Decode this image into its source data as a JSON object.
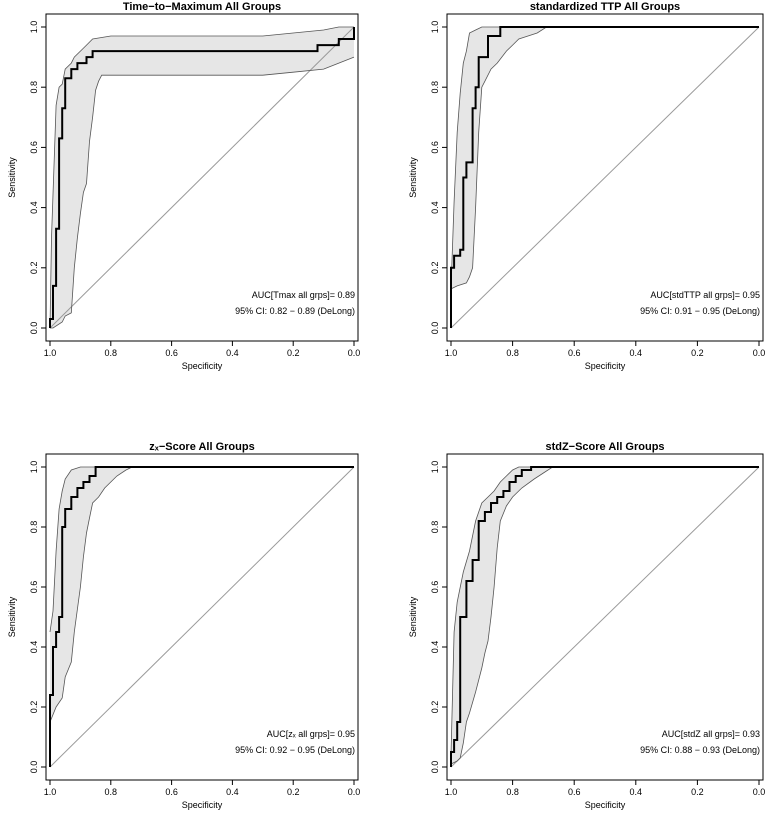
{
  "figure": {
    "background": "#ffffff",
    "band_color": "#e6e6e6"
  },
  "chart_data": [
    {
      "type": "line",
      "title": "Time−to−Maximum All Groups",
      "xlabel": "Specificity",
      "ylabel": "Sensitivity",
      "xlim": [
        1.0,
        0.0
      ],
      "ylim": [
        0.0,
        1.0
      ],
      "xticks": [
        "1.0",
        "0.8",
        "0.6",
        "0.4",
        "0.2",
        "0.0"
      ],
      "yticks": [
        "0.0",
        "0.2",
        "0.4",
        "0.6",
        "0.8",
        "1.0"
      ],
      "annotations": [
        "AUC[Tmax all grps]= 0.89",
        "95% CI: 0.82 − 0.89 (DeLong)"
      ],
      "series": [
        {
          "name": "ROC",
          "x": [
            1.0,
            1.0,
            0.99,
            0.99,
            0.98,
            0.98,
            0.97,
            0.97,
            0.96,
            0.96,
            0.95,
            0.95,
            0.93,
            0.93,
            0.91,
            0.91,
            0.88,
            0.88,
            0.86,
            0.86,
            0.12,
            0.12,
            0.05,
            0.05,
            0.0,
            0.0
          ],
          "y": [
            0.0,
            0.03,
            0.03,
            0.14,
            0.14,
            0.33,
            0.33,
            0.63,
            0.63,
            0.73,
            0.73,
            0.83,
            0.83,
            0.86,
            0.86,
            0.88,
            0.88,
            0.9,
            0.9,
            0.92,
            0.92,
            0.94,
            0.94,
            0.96,
            0.96,
            1.0
          ]
        },
        {
          "name": "CI upper",
          "x": [
            1.0,
            0.995,
            0.98,
            0.97,
            0.96,
            0.95,
            0.93,
            0.92,
            0.9,
            0.88,
            0.86,
            0.8,
            0.5,
            0.3,
            0.1,
            0.05,
            0.0
          ],
          "y": [
            0.0,
            0.3,
            0.74,
            0.8,
            0.81,
            0.86,
            0.88,
            0.9,
            0.92,
            0.94,
            0.96,
            0.97,
            0.97,
            0.97,
            0.99,
            1.0,
            1.0
          ]
        },
        {
          "name": "CI lower",
          "x": [
            1.0,
            0.99,
            0.96,
            0.95,
            0.93,
            0.92,
            0.91,
            0.9,
            0.89,
            0.88,
            0.87,
            0.86,
            0.85,
            0.84,
            0.83,
            0.6,
            0.3,
            0.2,
            0.1,
            0.05,
            0.0
          ],
          "y": [
            0.0,
            0.0,
            0.02,
            0.04,
            0.05,
            0.2,
            0.3,
            0.38,
            0.45,
            0.48,
            0.62,
            0.7,
            0.79,
            0.82,
            0.84,
            0.84,
            0.84,
            0.85,
            0.86,
            0.88,
            0.9
          ]
        }
      ]
    },
    {
      "type": "line",
      "title": "standardized TTP All Groups",
      "xlabel": "Specificity",
      "ylabel": "Sensitivity",
      "xlim": [
        1.0,
        0.0
      ],
      "ylim": [
        0.0,
        1.0
      ],
      "xticks": [
        "1.0",
        "0.8",
        "0.6",
        "0.4",
        "0.2",
        "0.0"
      ],
      "yticks": [
        "0.0",
        "0.2",
        "0.4",
        "0.6",
        "0.8",
        "1.0"
      ],
      "annotations": [
        "AUC[stdTTP all grps]= 0.95",
        "95% CI: 0.91 − 0.95 (DeLong)"
      ],
      "series": [
        {
          "name": "ROC",
          "x": [
            1.0,
            1.0,
            0.99,
            0.99,
            0.97,
            0.97,
            0.96,
            0.96,
            0.95,
            0.95,
            0.93,
            0.93,
            0.92,
            0.92,
            0.91,
            0.91,
            0.88,
            0.88,
            0.84,
            0.84,
            0.0
          ],
          "y": [
            0.0,
            0.2,
            0.2,
            0.24,
            0.24,
            0.26,
            0.26,
            0.5,
            0.5,
            0.55,
            0.55,
            0.73,
            0.73,
            0.8,
            0.8,
            0.9,
            0.9,
            0.97,
            0.97,
            1.0,
            1.0
          ]
        },
        {
          "name": "CI upper",
          "x": [
            1.0,
            0.99,
            0.98,
            0.97,
            0.96,
            0.95,
            0.94,
            0.92,
            0.9,
            0.0
          ],
          "y": [
            0.13,
            0.42,
            0.65,
            0.78,
            0.88,
            0.92,
            0.98,
            0.99,
            1.0,
            1.0
          ]
        },
        {
          "name": "CI lower",
          "x": [
            1.0,
            0.98,
            0.95,
            0.94,
            0.93,
            0.92,
            0.91,
            0.9,
            0.89,
            0.87,
            0.85,
            0.82,
            0.8,
            0.78,
            0.75,
            0.72,
            0.69,
            0.0
          ],
          "y": [
            0.13,
            0.14,
            0.15,
            0.17,
            0.2,
            0.4,
            0.65,
            0.8,
            0.82,
            0.86,
            0.88,
            0.92,
            0.94,
            0.96,
            0.97,
            0.98,
            1.0,
            1.0
          ]
        }
      ]
    },
    {
      "type": "line",
      "title": "zₓ−Score All Groups",
      "xlabel": "Specificity",
      "ylabel": "Sensitivity",
      "xlim": [
        1.0,
        0.0
      ],
      "ylim": [
        0.0,
        1.0
      ],
      "xticks": [
        "1.0",
        "0.8",
        "0.6",
        "0.4",
        "0.2",
        "0.0"
      ],
      "yticks": [
        "0.0",
        "0.2",
        "0.4",
        "0.6",
        "0.8",
        "1.0"
      ],
      "annotations": [
        "AUC[zₓ all grps]= 0.95",
        "95% CI: 0.92 − 0.95 (DeLong)"
      ],
      "series": [
        {
          "name": "ROC",
          "x": [
            1.0,
            1.0,
            0.99,
            0.99,
            0.98,
            0.98,
            0.97,
            0.97,
            0.96,
            0.96,
            0.95,
            0.95,
            0.93,
            0.93,
            0.91,
            0.91,
            0.89,
            0.89,
            0.87,
            0.87,
            0.85,
            0.85,
            0.0
          ],
          "y": [
            0.0,
            0.24,
            0.24,
            0.4,
            0.4,
            0.45,
            0.45,
            0.5,
            0.5,
            0.8,
            0.8,
            0.86,
            0.86,
            0.9,
            0.9,
            0.93,
            0.93,
            0.95,
            0.95,
            0.97,
            0.97,
            1.0,
            1.0
          ]
        },
        {
          "name": "CI upper",
          "x": [
            1.0,
            0.99,
            0.98,
            0.97,
            0.96,
            0.95,
            0.93,
            0.9,
            0.87,
            0.0
          ],
          "y": [
            0.45,
            0.52,
            0.72,
            0.86,
            0.92,
            0.96,
            0.99,
            1.0,
            1.0,
            1.0
          ]
        },
        {
          "name": "CI lower",
          "x": [
            1.0,
            0.98,
            0.96,
            0.95,
            0.93,
            0.92,
            0.9,
            0.89,
            0.88,
            0.87,
            0.86,
            0.84,
            0.82,
            0.8,
            0.78,
            0.75,
            0.73,
            0.0
          ],
          "y": [
            0.15,
            0.2,
            0.23,
            0.3,
            0.35,
            0.45,
            0.6,
            0.7,
            0.78,
            0.83,
            0.88,
            0.9,
            0.93,
            0.95,
            0.97,
            0.99,
            1.0,
            1.0
          ]
        }
      ]
    },
    {
      "type": "line",
      "title": "stdZ−Score All Groups",
      "xlabel": "Specificity",
      "ylabel": "Sensitivity",
      "xlim": [
        1.0,
        0.0
      ],
      "ylim": [
        0.0,
        1.0
      ],
      "xticks": [
        "1.0",
        "0.8",
        "0.6",
        "0.4",
        "0.2",
        "0.0"
      ],
      "yticks": [
        "0.0",
        "0.2",
        "0.4",
        "0.6",
        "0.8",
        "1.0"
      ],
      "annotations": [
        "AUC[stdZ all grps]= 0.93",
        "95% CI: 0.88 − 0.93 (DeLong)"
      ],
      "series": [
        {
          "name": "ROC",
          "x": [
            1.0,
            1.0,
            0.99,
            0.99,
            0.98,
            0.98,
            0.97,
            0.97,
            0.95,
            0.95,
            0.93,
            0.93,
            0.91,
            0.91,
            0.89,
            0.89,
            0.87,
            0.87,
            0.85,
            0.85,
            0.83,
            0.83,
            0.81,
            0.81,
            0.79,
            0.79,
            0.77,
            0.77,
            0.74,
            0.74,
            0.0
          ],
          "y": [
            0.0,
            0.05,
            0.05,
            0.09,
            0.09,
            0.15,
            0.15,
            0.5,
            0.5,
            0.62,
            0.62,
            0.69,
            0.69,
            0.82,
            0.82,
            0.85,
            0.85,
            0.88,
            0.88,
            0.9,
            0.9,
            0.92,
            0.92,
            0.95,
            0.95,
            0.97,
            0.97,
            0.99,
            0.99,
            1.0,
            1.0
          ]
        },
        {
          "name": "CI upper",
          "x": [
            1.0,
            0.99,
            0.98,
            0.96,
            0.94,
            0.92,
            0.9,
            0.88,
            0.86,
            0.84,
            0.82,
            0.8,
            0.78,
            0.74,
            0.0
          ],
          "y": [
            0.04,
            0.45,
            0.55,
            0.65,
            0.72,
            0.82,
            0.88,
            0.9,
            0.92,
            0.95,
            0.97,
            0.99,
            1.0,
            1.0,
            1.0
          ]
        },
        {
          "name": "CI lower",
          "x": [
            1.0,
            0.98,
            0.97,
            0.96,
            0.95,
            0.94,
            0.92,
            0.9,
            0.89,
            0.88,
            0.87,
            0.86,
            0.85,
            0.84,
            0.82,
            0.8,
            0.77,
            0.73,
            0.7,
            0.67,
            0.0
          ],
          "y": [
            0.01,
            0.02,
            0.03,
            0.08,
            0.15,
            0.18,
            0.25,
            0.33,
            0.38,
            0.42,
            0.5,
            0.6,
            0.73,
            0.82,
            0.87,
            0.9,
            0.93,
            0.96,
            0.98,
            1.0,
            1.0
          ]
        }
      ]
    }
  ]
}
